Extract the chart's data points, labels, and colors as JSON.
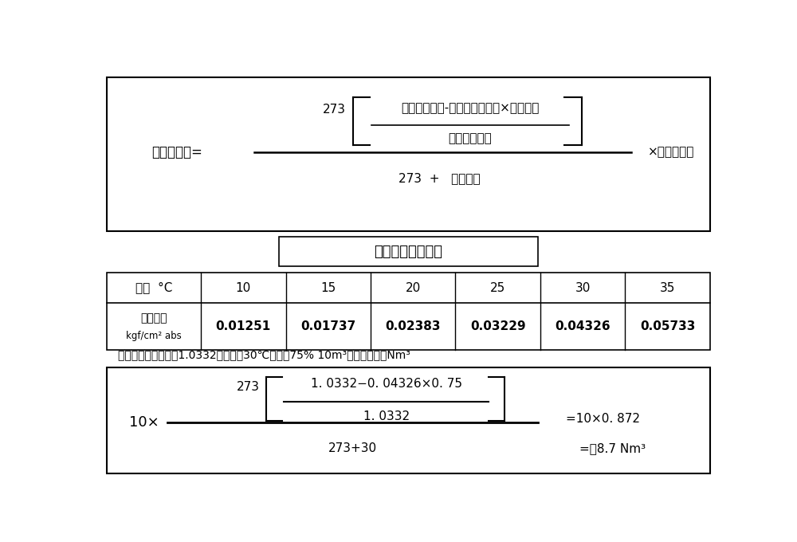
{
  "bg_color": "#ffffff",
  "border_color": "#000000",
  "title_formula": "饱和水蒸气压力表",
  "temp_label": "温度  °C",
  "pressure_label_line1": "饱和压力",
  "pressure_label_line2": "kgf/cm² abs",
  "temperatures": [
    "10",
    "15",
    "20",
    "25",
    "30",
    "35"
  ],
  "pressures": [
    "0.01251",
    "0.01737",
    "0.02383",
    "0.03229",
    "0.04326",
    "0.05733"
  ],
  "example_text": "计算示例：将气压（1.0332）、温度30℃、湿度75% 10m³的空气换算为Nm³",
  "formula_label": "标准空气量=",
  "formula_numerator_top": "绝对吸入压力-饱和水蒸气压力×相对湿度",
  "formula_numerator_bot": "绝对吸入压力",
  "formula_denominator": "273  +   吸入温度",
  "formula_273": "273",
  "formula_times": "×实际排出量",
  "calc_10x": "10×",
  "calc_273": "273",
  "calc_num_top": "1. 0332−0. 04326×0. 75",
  "calc_num_bot": "1. 0332",
  "calc_den": "273+30",
  "calc_result1": "=10×0. 872",
  "calc_result2": "=约8.7 Nm³"
}
